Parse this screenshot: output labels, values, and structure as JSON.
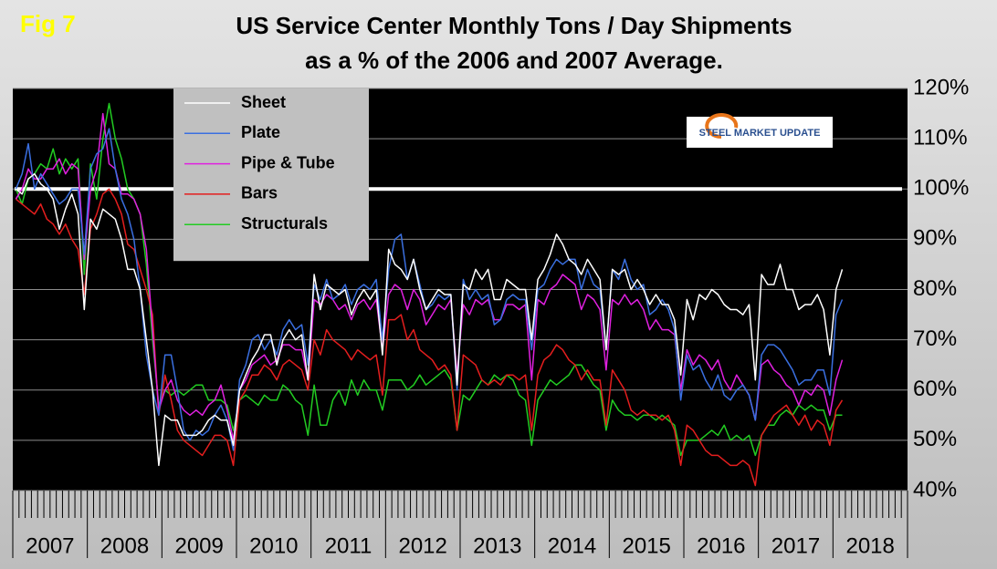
{
  "chart_data": {
    "type": "line",
    "fig_label": "Fig 7",
    "title": "US Service Center Monthly Tons / Day Shipments",
    "subtitle": "as a % of the 2006 and 2007 Average.",
    "logo": "STEEL MARKET UPDATE",
    "categories": [
      "2007",
      null,
      null,
      null,
      null,
      null,
      null,
      null,
      null,
      null,
      null,
      null,
      "2008",
      null,
      null,
      null,
      null,
      null,
      null,
      null,
      null,
      null,
      null,
      null,
      "2009",
      null,
      null,
      null,
      null,
      null,
      null,
      null,
      null,
      null,
      null,
      null,
      "2010",
      null,
      null,
      null,
      null,
      null,
      null,
      null,
      null,
      null,
      null,
      null,
      "2011",
      null,
      null,
      null,
      null,
      null,
      null,
      null,
      null,
      null,
      null,
      null,
      "2012",
      null,
      null,
      null,
      null,
      null,
      null,
      null,
      null,
      null,
      null,
      null,
      "2013",
      null,
      null,
      null,
      null,
      null,
      null,
      null,
      null,
      null,
      null,
      null,
      "2014",
      null,
      null,
      null,
      null,
      null,
      null,
      null,
      null,
      null,
      null,
      null,
      "2015",
      null,
      null,
      null,
      null,
      null,
      null,
      null,
      null,
      null,
      null,
      null,
      "2016",
      null,
      null,
      null,
      null,
      null,
      null,
      null,
      null,
      null,
      null,
      null,
      "2017",
      null,
      null,
      null,
      null,
      null,
      null,
      null,
      null,
      null,
      null,
      null,
      "2018",
      null,
      null,
      null,
      null,
      null,
      null,
      null,
      null,
      null,
      null,
      null
    ],
    "series": [
      {
        "name": "Sheet",
        "color": "#ffffff",
        "values": [
          100,
          99,
          102,
          103,
          101,
          100,
          98,
          92,
          96,
          99,
          95,
          76,
          94,
          92,
          96,
          95,
          94,
          90,
          84,
          84,
          80,
          70,
          60,
          45,
          55,
          54,
          54,
          51,
          51,
          51,
          52,
          54,
          55,
          54,
          54,
          49,
          60,
          63,
          66,
          68,
          71,
          71,
          65,
          70,
          72,
          70,
          71,
          62,
          83,
          76,
          81,
          80,
          79,
          80,
          75,
          78,
          80,
          78,
          80,
          67,
          88,
          85,
          84,
          82,
          86,
          80,
          76,
          78,
          80,
          79,
          79,
          61,
          81,
          80,
          84,
          82,
          84,
          78,
          78,
          82,
          81,
          80,
          80,
          70,
          82,
          84,
          87,
          91,
          89,
          86,
          85,
          83,
          86,
          84,
          82,
          68,
          84,
          83,
          84,
          80,
          82,
          80,
          77,
          79,
          77,
          77,
          74,
          63,
          78,
          74,
          79,
          78,
          80,
          79,
          77,
          76,
          76,
          75,
          77,
          62,
          83,
          81,
          81,
          85,
          80,
          80,
          76,
          77,
          77,
          79,
          76,
          67,
          80,
          84,
          null,
          null,
          null,
          null,
          null,
          null,
          null,
          null,
          null,
          null
        ]
      },
      {
        "name": "Plate",
        "color": "#3a6fe0",
        "values": [
          100,
          103,
          109,
          100,
          103,
          101,
          99,
          97,
          98,
          100,
          100,
          87,
          104,
          107,
          108,
          112,
          104,
          98,
          95,
          90,
          80,
          67,
          60,
          55,
          67,
          67,
          60,
          52,
          50,
          52,
          51,
          52,
          55,
          57,
          54,
          48,
          62,
          65,
          70,
          71,
          68,
          70,
          67,
          72,
          74,
          72,
          73,
          65,
          81,
          78,
          82,
          78,
          79,
          81,
          77,
          80,
          81,
          80,
          82,
          70,
          84,
          90,
          91,
          82,
          86,
          81,
          76,
          77,
          79,
          78,
          79,
          60,
          82,
          78,
          80,
          78,
          79,
          73,
          74,
          78,
          79,
          78,
          78,
          68,
          80,
          81,
          84,
          86,
          85,
          86,
          86,
          80,
          84,
          81,
          80,
          68,
          84,
          82,
          86,
          82,
          80,
          81,
          75,
          76,
          78,
          76,
          72,
          58,
          67,
          64,
          65,
          62,
          60,
          63,
          59,
          58,
          60,
          61,
          59,
          54,
          67,
          69,
          69,
          68,
          66,
          64,
          61,
          62,
          62,
          64,
          64,
          59,
          75,
          78,
          null,
          null,
          null,
          null,
          null,
          null,
          null,
          null,
          null,
          null
        ]
      },
      {
        "name": "Pipe & Tube",
        "color": "#e020e0",
        "values": [
          98,
          100,
          104,
          102,
          102,
          104,
          104,
          106,
          103,
          105,
          104,
          86,
          100,
          104,
          115,
          105,
          104,
          99,
          99,
          98,
          95,
          88,
          72,
          56,
          60,
          62,
          58,
          56,
          55,
          56,
          55,
          57,
          58,
          61,
          56,
          50,
          60,
          62,
          65,
          66,
          67,
          65,
          66,
          69,
          69,
          68,
          68,
          62,
          78,
          77,
          79,
          78,
          76,
          77,
          74,
          77,
          78,
          76,
          78,
          68,
          79,
          81,
          80,
          76,
          80,
          78,
          73,
          75,
          77,
          76,
          78,
          63,
          77,
          75,
          78,
          77,
          78,
          74,
          74,
          77,
          77,
          76,
          77,
          62,
          78,
          77,
          80,
          81,
          83,
          82,
          81,
          76,
          79,
          78,
          76,
          64,
          78,
          77,
          79,
          77,
          78,
          76,
          72,
          74,
          72,
          72,
          71,
          60,
          68,
          65,
          67,
          66,
          64,
          66,
          62,
          60,
          63,
          61,
          59,
          54,
          65,
          66,
          64,
          63,
          61,
          60,
          57,
          60,
          59,
          61,
          60,
          55,
          62,
          66,
          null,
          null,
          null,
          null,
          null,
          null,
          null,
          null,
          null,
          null
        ]
      },
      {
        "name": "Bars",
        "color": "#e41e1e",
        "values": [
          98,
          97,
          96,
          95,
          97,
          94,
          93,
          91,
          93,
          90,
          88,
          79,
          92,
          95,
          99,
          100,
          98,
          95,
          89,
          88,
          84,
          80,
          75,
          55,
          63,
          58,
          52,
          50,
          49,
          48,
          47,
          49,
          51,
          51,
          50,
          45,
          58,
          60,
          63,
          63,
          65,
          64,
          62,
          65,
          66,
          65,
          64,
          60,
          70,
          67,
          72,
          70,
          69,
          68,
          66,
          68,
          67,
          66,
          67,
          59,
          74,
          74,
          75,
          70,
          72,
          68,
          67,
          66,
          64,
          65,
          63,
          52,
          67,
          66,
          65,
          62,
          61,
          62,
          61,
          63,
          63,
          62,
          63,
          52,
          63,
          66,
          67,
          69,
          68,
          66,
          65,
          62,
          64,
          62,
          62,
          53,
          64,
          62,
          60,
          56,
          55,
          56,
          55,
          55,
          54,
          55,
          52,
          45,
          53,
          52,
          50,
          48,
          47,
          47,
          46,
          45,
          45,
          46,
          45,
          41,
          51,
          53,
          55,
          56,
          57,
          55,
          53,
          55,
          52,
          54,
          53,
          49,
          56,
          58,
          null,
          null,
          null,
          null,
          null,
          null,
          null,
          null,
          null,
          null
        ]
      },
      {
        "name": "Structurals",
        "color": "#22cc22",
        "values": [
          100,
          97,
          102,
          103,
          105,
          104,
          108,
          103,
          106,
          104,
          106,
          83,
          105,
          98,
          110,
          117,
          110,
          106,
          100,
          98,
          95,
          85,
          70,
          57,
          60,
          59,
          60,
          59,
          60,
          61,
          61,
          58,
          58,
          58,
          57,
          52,
          58,
          59,
          58,
          57,
          59,
          58,
          58,
          61,
          60,
          58,
          57,
          51,
          61,
          53,
          53,
          58,
          60,
          57,
          62,
          59,
          62,
          60,
          60,
          56,
          62,
          62,
          62,
          60,
          61,
          63,
          61,
          62,
          63,
          64,
          62,
          52,
          59,
          58,
          60,
          62,
          61,
          63,
          62,
          63,
          62,
          59,
          58,
          49,
          58,
          60,
          62,
          61,
          62,
          63,
          65,
          65,
          63,
          61,
          60,
          52,
          58,
          56,
          55,
          55,
          54,
          55,
          55,
          54,
          55,
          54,
          53,
          47,
          50,
          50,
          50,
          51,
          52,
          51,
          53,
          50,
          51,
          50,
          51,
          47,
          51,
          53,
          53,
          55,
          56,
          55,
          57,
          56,
          57,
          56,
          56,
          52,
          55,
          55,
          null,
          null,
          null,
          null,
          null,
          null,
          null,
          null,
          null,
          null
        ]
      }
    ],
    "ylim": [
      40,
      120
    ],
    "yticks": [
      {
        "value": 40,
        "label": "40%"
      },
      {
        "value": 50,
        "label": "50%"
      },
      {
        "value": 60,
        "label": "60%"
      },
      {
        "value": 70,
        "label": "70%"
      },
      {
        "value": 80,
        "label": "80%"
      },
      {
        "value": 90,
        "label": "90%"
      },
      {
        "value": 100,
        "label": "100%"
      },
      {
        "value": 110,
        "label": "110%"
      },
      {
        "value": 120,
        "label": "120%"
      }
    ],
    "grid": true,
    "reference_line": 100,
    "legend": "upper left"
  }
}
